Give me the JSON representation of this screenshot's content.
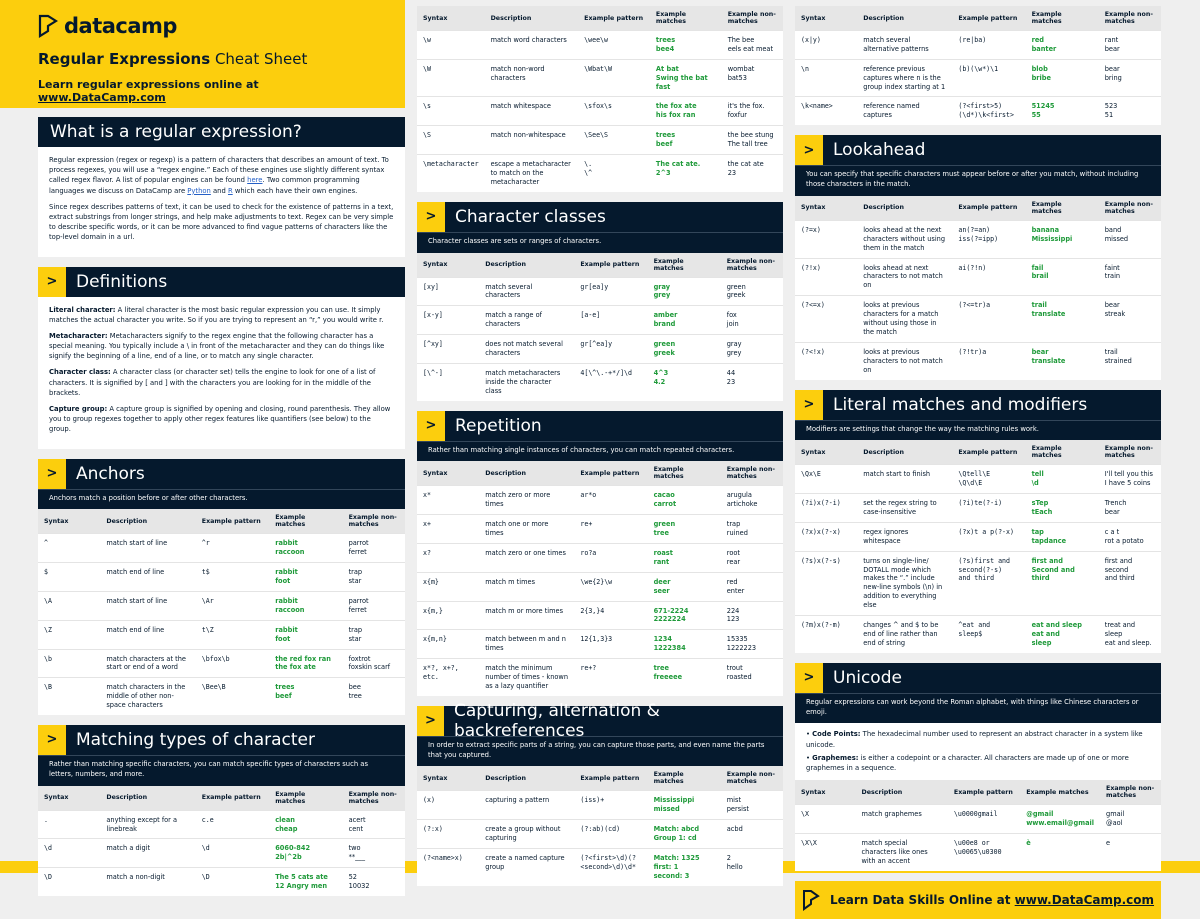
{
  "header": {
    "logo": "datacamp",
    "title_bold": "Regular Expressions",
    "title_rest": "Cheat Sheet",
    "subtitle": "Learn regular expressions online at ",
    "link": "www.DataCamp.com"
  },
  "table_headers": [
    "Syntax",
    "Description",
    "Example pattern",
    "Example matches",
    "Example non-matches"
  ],
  "sections": [
    {
      "title": "What is a regular expression?",
      "paragraphs": [
        [
          "Regular expression (regex or regexp) is a pattern of characters that describes an amount of text. To process regexes, you will use a “regex engine.” Each of these engines use slightly different syntax called regex flavor. A list of popular engines can be found ",
          "here",
          ". Two common programming languages we discuss on DataCamp are ",
          "Python",
          " and ",
          "R",
          " which each have their own engines."
        ],
        [
          "Since regex describes patterns of text, it can be used to check for the existence of patterns in a text, extract substrings from longer strings, and help make adjustments to text. Regex can be very simple to describe specific words, or it can be more advanced to find vague patterns of characters like the top-level domain in a url."
        ]
      ]
    },
    {
      "title": "Definitions",
      "definitions": [
        {
          "term": "Literal character:",
          "text": " A literal character is the most basic regular expression you can use. It simply matches the actual character you write. So if you are trying to represent an “r,” you would write r."
        },
        {
          "term": "Metacharacter:",
          "text": " Metacharacters signify to the regex engine that the following character has a special meaning. You typically include a \\ in front of the metacharacter and they can do things like signify the beginning of a line, end of a line, or to match any single character."
        },
        {
          "term": "Character class:",
          "text": " A character class (or character set) tells the engine to look for one of a list of characters. It is signified by [ and ] with the characters you are looking for in the middle of the brackets."
        },
        {
          "term": "Capture group:",
          "text": " A capture group is signified by opening and closing, round parenthesis. They allow you to group regexes together to apply other regex features like quantifiers (see below) to the group."
        }
      ]
    },
    {
      "title": "Anchors",
      "intro": "Anchors match a position before or after other characters.",
      "rows": [
        [
          "^",
          "match start of line",
          "^r",
          "rabbit\nraccoon",
          "parrot\nferret"
        ],
        [
          "$",
          "match end of line",
          "t$",
          "rabbit\nfoot",
          "trap\nstar"
        ],
        [
          "\\A",
          "match start of line",
          "\\Ar",
          "rabbit\nraccoon",
          "parrot\nferret"
        ],
        [
          "\\Z",
          "match end of line",
          "t\\Z",
          "rabbit\nfoot",
          "trap\nstar"
        ],
        [
          "\\b",
          "match characters at the start or end of a word",
          "\\bfox\\b",
          "the red fox ran\nthe fox ate",
          "foxtrot\nfoxskin scarf"
        ],
        [
          "\\B",
          "match characters in the middle of other non-space characters",
          "\\Bee\\B",
          "trees\nbeef",
          "bee\ntree"
        ]
      ]
    },
    {
      "title": "Matching types of character",
      "intro": "Rather than matching specific characters, you can match specific types of characters such as letters, numbers, and more.",
      "rows": [
        [
          ".",
          "anything except for a linebreak",
          "c.e",
          "clean\ncheap",
          "acert\ncent"
        ],
        [
          "\\d",
          "match a digit",
          "\\d",
          "6060-842\n2b|^2b",
          "two\n**___"
        ],
        [
          "\\D",
          "match a non-digit",
          "\\D",
          "The 5 cats ate\n12 Angry men",
          "52\n10032"
        ]
      ]
    },
    {
      "rows": [
        [
          "\\w",
          "match word characters",
          "\\wee\\w",
          "trees\nbee4",
          "The bee\neels eat meat"
        ],
        [
          "\\W",
          "match non-word characters",
          "\\Wbat\\W",
          "At bat\nSwing the bat fast",
          "wombat\nbat53"
        ],
        [
          "\\s",
          "match whitespace",
          "\\sfox\\s",
          "the fox ate\nhis fox ran",
          "it's the fox.\nfoxfur"
        ],
        [
          "\\S",
          "match non-whitespace",
          "\\See\\S",
          "trees\nbeef",
          "the bee stung\nThe tall tree"
        ],
        [
          "\\metacharacter",
          "escape a metacharacter to match on the metacharacter",
          "\\.\n\\^",
          "The cat ate.\n2^3",
          "the cat ate\n23"
        ]
      ]
    },
    {
      "title": "Character classes",
      "intro": "Character classes are sets or ranges of characters.",
      "rows": [
        [
          "[xy]",
          "match several characters",
          "gr[ea]y",
          "gray\ngrey",
          "green\ngreek"
        ],
        [
          "[x-y]",
          "match a range of characters",
          "[a-e]",
          "amber\nbrand",
          "fox\njoin"
        ],
        [
          "[^xy]",
          "does not match several characters",
          "gr[^ea]y",
          "green\ngreek",
          "gray\ngrey"
        ],
        [
          "[\\^-]",
          "match metacharacters inside the character class",
          "4[\\^\\.-+*/]\\d",
          "4^3\n4.2",
          "44\n23"
        ]
      ]
    },
    {
      "title": "Repetition",
      "intro": "Rather than matching single instances of characters, you can match repeated characters.",
      "rows": [
        [
          "x*",
          "match zero or more times",
          "ar*o",
          "cacao\ncarrot",
          "arugula\nartichoke"
        ],
        [
          "x+",
          "match one or more times",
          "re+",
          "green\ntree",
          "trap\nruined"
        ],
        [
          "x?",
          "match zero or one times",
          "ro?a",
          "roast\nrant",
          "root\nrear"
        ],
        [
          "x{m}",
          "match m times",
          "\\we{2}\\w",
          "deer\nseer",
          "red\nenter"
        ],
        [
          "x{m,}",
          "match m or more times",
          "2{3,}4",
          "671-2224\n2222224",
          "224\n123"
        ],
        [
          "x{m,n}",
          "match between m and n times",
          "12{1,3}3",
          "1234\n1222384",
          "15335\n1222223"
        ],
        [
          "x*?, x+?, etc.",
          "match the minimum number of times - known as a lazy quantifier",
          "re+?",
          "tree\nfreeeee",
          "trout\nroasted"
        ]
      ]
    },
    {
      "title": "Capturing, alternation & backreferences",
      "intro": "In order to extract specific parts of a string, you can capture those parts, and even name the parts that you captured.",
      "rows": [
        [
          "(x)",
          "capturing a pattern",
          "(iss)+",
          "Mississippi\nmissed",
          "mist\npersist"
        ],
        [
          "(?:x)",
          "create a group without capturing",
          "(?:ab)(cd)",
          "Match: abcd\nGroup 1: cd",
          "acbd"
        ],
        [
          "(?<name>x)",
          "create a named capture group",
          "(?<first>\\d)(?<second>\\d)\\d*",
          "Match: 1325\nfirst: 1\nsecond: 3",
          "2\nhello"
        ]
      ]
    },
    {
      "rows": [
        [
          "(x|y)",
          "match several alternative patterns",
          "(re|ba)",
          "red\nbanter",
          "rant\nbear"
        ],
        [
          "\\n",
          "reference previous captures where n is the group index starting at 1",
          "(b)(\\w*)\\1",
          "blob\nbribe",
          "bear\nbring"
        ],
        [
          "\\k<name>",
          "reference named captures",
          "(?<first>5)(\\d*)\\k<first>",
          "51245\n55",
          "523\n51"
        ]
      ]
    },
    {
      "title": "Lookahead",
      "intro": "You can specify that specific characters must appear before or after you match, without including those characters in the match.",
      "rows": [
        [
          "(?=x)",
          "looks ahead at the next characters without using them in the match",
          "an(?=an)\niss(?=ipp)",
          "banana\nMississippi",
          "band\nmissed"
        ],
        [
          "(?!x)",
          "looks ahead at next characters to not match on",
          "ai(?!n)",
          "fail\nbrail",
          "faint\ntrain"
        ],
        [
          "(?<=x)",
          "looks at previous characters for a match without using those in the match",
          "(?<=tr)a",
          "trail\ntranslate",
          "bear\nstreak"
        ],
        [
          "(?<!x)",
          "looks at previous characters to not match on",
          "(?!tr)a",
          "bear\ntranslate",
          "trail\nstrained"
        ]
      ]
    },
    {
      "title": "Literal matches and modifiers",
      "intro": "Modifiers are settings that change the way the matching rules work.",
      "rows": [
        [
          "\\Qx\\E",
          "match start to finish",
          "\\Qtell\\E\n\\Q\\d\\E",
          "tell\n\\d",
          "I'll tell you this\nI have 5 coins"
        ],
        [
          "(?i)x(?-i)",
          "set the regex string to case-insensitive",
          "(?i)te(?-i)",
          "sTep\ntEach",
          "Trench\nbear"
        ],
        [
          "(?x)x(?-x)",
          "regex ignores whitespace",
          "(?x)t a p(?-x)",
          "tap\ntapdance",
          "c a t\nrot a potato"
        ],
        [
          "(?s)x(?-s)",
          "turns on single-line/ DOTALL mode which makes the “.” include new-line symbols (\\n) in addition to everything else",
          "(?s)first and\nsecond(?-s)\nand third",
          "first and\nSecond and third",
          "first and\nsecond\nand third"
        ],
        [
          "(?m)x(?-m)",
          "changes ^ and $ to be end of line rather than end of string",
          "^eat and\nsleep$",
          "eat and sleep\neat and\nsleep",
          "treat and\nsleep\neat and sleep."
        ]
      ]
    },
    {
      "title": "Unicode",
      "intro": "Regular expressions can work beyond the Roman alphabet, with things like Chinese characters or emoji.",
      "bullets": [
        {
          "term": "Code Points:",
          "text": " The hexadecimal number used to represent an abstract character in a system like unicode."
        },
        {
          "term": "Graphemes:",
          "text": " is either a codepoint or a character. All characters are made up of one or more graphemes in a sequence."
        }
      ],
      "rows": [
        [
          "\\X",
          "match graphemes",
          "\\u0000gmail",
          "@gmail\nwww.email@gmail",
          "gmail\n@aol"
        ],
        [
          "\\X\\X",
          "match special characters like ones with an accent",
          "\\u00e8 or\n\\u0065\\u0300",
          "è",
          "e"
        ]
      ]
    }
  ],
  "footer": {
    "text": "Learn Data Skills Online at ",
    "link": "www.DataCamp.com"
  }
}
